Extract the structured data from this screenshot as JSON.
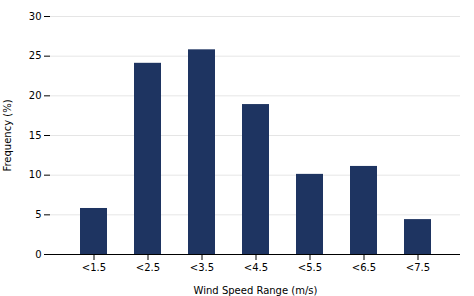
{
  "chart_data": {
    "type": "bar",
    "categories": [
      "<1.5",
      "<2.5",
      "<3.5",
      "<4.5",
      "<5.5",
      "<6.5",
      "<7.5"
    ],
    "values": [
      5.8,
      24.1,
      25.8,
      18.9,
      10.1,
      11.1,
      4.4
    ],
    "color": "#1e3461",
    "xlabel": "Wind Speed Range (m/s)",
    "ylabel": "Frequency (%)",
    "ylim": [
      0,
      30
    ],
    "yticks": [
      0,
      5,
      10,
      15,
      20,
      25,
      30
    ],
    "grid": true
  }
}
